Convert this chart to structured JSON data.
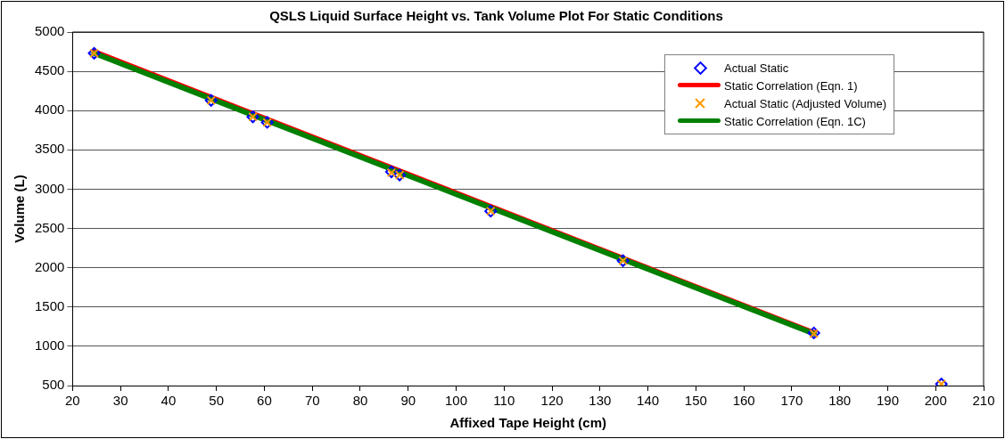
{
  "chart_data": {
    "type": "scatter",
    "title": "QSLS Liquid Surface Height vs. Tank Volume Plot For Static Conditions",
    "xlabel": "Affixed Tape Height (cm)",
    "ylabel": "Volume (L)",
    "xlim": [
      20,
      210
    ],
    "xticks": [
      20,
      30,
      40,
      50,
      60,
      70,
      80,
      90,
      100,
      110,
      120,
      130,
      140,
      150,
      160,
      170,
      180,
      190,
      200,
      210
    ],
    "ylim": [
      500,
      5000
    ],
    "yticks": [
      500,
      1000,
      1500,
      2000,
      2500,
      3000,
      3500,
      4000,
      4500,
      5000
    ],
    "grid": "y",
    "legend": "top right",
    "series": [
      {
        "name": "Actual Static",
        "marker": "diamond",
        "color": "#0000ff",
        "x": [
          24.5,
          48.9,
          57.6,
          60.6,
          86.5,
          88.2,
          107.2,
          134.8,
          174.6,
          201.2
        ],
        "values": [
          4730,
          4130,
          3920,
          3850,
          3220,
          3180,
          2720,
          2090,
          1170,
          520
        ]
      },
      {
        "name": "Static Correlation (Eqn. 1)",
        "type": "line",
        "marker": "none",
        "color": "#ff0000",
        "x": [
          24.5,
          174.6
        ],
        "values": [
          4750,
          1170
        ]
      },
      {
        "name": "Actual Static (Adjusted Volume)",
        "marker": "cross",
        "color": "#ff9900",
        "x": [
          24.5,
          48.9,
          57.6,
          60.6,
          86.5,
          88.2,
          107.2,
          134.8,
          174.6,
          201.2
        ],
        "values": [
          4730,
          4130,
          3920,
          3850,
          3210,
          3180,
          2720,
          2090,
          1160,
          520
        ]
      },
      {
        "name": "Static Correlation (Eqn. 1C)",
        "type": "line",
        "marker": "none",
        "color": "#008000",
        "x": [
          24.5,
          174.6
        ],
        "values": [
          4730,
          1160
        ]
      }
    ]
  }
}
